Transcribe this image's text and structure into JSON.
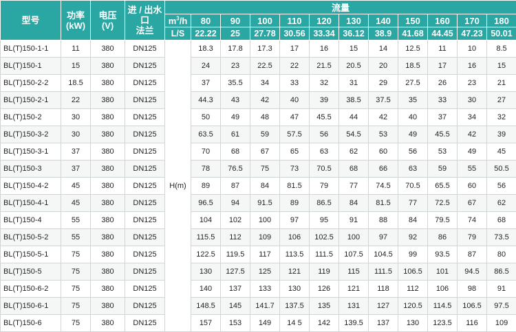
{
  "header": {
    "model": "型号",
    "power": "功率\n(kW)",
    "voltage": "电压\n(V)",
    "port": "进 / 出水\n口\n法兰",
    "flow": "流量",
    "unit_m3h": "m³/h",
    "unit_ls": "L/S",
    "head_label": "H(m)"
  },
  "flow_m3h": [
    "80",
    "90",
    "100",
    "110",
    "120",
    "130",
    "140",
    "150",
    "160",
    "170",
    "180"
  ],
  "flow_ls": [
    "22.22",
    "25",
    "27.78",
    "30.56",
    "33.34",
    "36.12",
    "38.9",
    "41.68",
    "44.45",
    "47.23",
    "50.01"
  ],
  "rows": [
    {
      "model": "BL(T)150-1-1",
      "power": "11",
      "voltage": "380",
      "port": "DN125",
      "heads": [
        "18.3",
        "17.8",
        "17.3",
        "17",
        "16",
        "15",
        "14",
        "12.5",
        "11",
        "10",
        "8.5"
      ]
    },
    {
      "model": "BL(T)150-1",
      "power": "15",
      "voltage": "380",
      "port": "DN125",
      "heads": [
        "24",
        "23",
        "22.5",
        "22",
        "21.5",
        "20.5",
        "20",
        "18.5",
        "17",
        "16",
        "15"
      ]
    },
    {
      "model": "BL(T)150-2-2",
      "power": "18.5",
      "voltage": "380",
      "port": "DN125",
      "heads": [
        "37",
        "35.5",
        "34",
        "33",
        "32",
        "31",
        "29",
        "27.5",
        "26",
        "23",
        "21"
      ]
    },
    {
      "model": "BL(T)150-2-1",
      "power": "22",
      "voltage": "380",
      "port": "DN125",
      "heads": [
        "44.3",
        "43",
        "42",
        "40",
        "39",
        "38.5",
        "37.5",
        "35",
        "33",
        "30",
        "27"
      ]
    },
    {
      "model": "BL(T)150-2",
      "power": "30",
      "voltage": "380",
      "port": "DN125",
      "heads": [
        "50",
        "49",
        "48",
        "47",
        "45.5",
        "44",
        "42",
        "40",
        "37",
        "34",
        "32"
      ]
    },
    {
      "model": "BL(T)150-3-2",
      "power": "30",
      "voltage": "380",
      "port": "DN125",
      "heads": [
        "63.5",
        "61",
        "59",
        "57.5",
        "56",
        "54.5",
        "53",
        "49",
        "45.5",
        "42",
        "39"
      ]
    },
    {
      "model": "BL(T)150-3-1",
      "power": "37",
      "voltage": "380",
      "port": "DN125",
      "heads": [
        "70",
        "68",
        "67",
        "65",
        "63",
        "62",
        "60",
        "56",
        "53",
        "49",
        "45"
      ]
    },
    {
      "model": "BL(T)150-3",
      "power": "37",
      "voltage": "380",
      "port": "DN125",
      "heads": [
        "78",
        "76.5",
        "75",
        "73",
        "70.5",
        "68",
        "66",
        "63",
        "59",
        "55",
        "50.5"
      ]
    },
    {
      "model": "BL(T)150-4-2",
      "power": "45",
      "voltage": "380",
      "port": "DN125",
      "heads": [
        "89",
        "87",
        "84",
        "81.5",
        "79",
        "77",
        "74.5",
        "70.5",
        "65.5",
        "60",
        "56"
      ]
    },
    {
      "model": "BL(T)150-4-1",
      "power": "45",
      "voltage": "380",
      "port": "DN125",
      "heads": [
        "96.5",
        "94",
        "91.5",
        "89",
        "86.5",
        "84",
        "81.5",
        "77",
        "72.5",
        "67",
        "62"
      ]
    },
    {
      "model": "BL(T)150-4",
      "power": "55",
      "voltage": "380",
      "port": "DN125",
      "heads": [
        "104",
        "102",
        "100",
        "97",
        "95",
        "91",
        "88",
        "84",
        "79.5",
        "74",
        "68"
      ]
    },
    {
      "model": "BL(T)150-5-2",
      "power": "55",
      "voltage": "380",
      "port": "DN125",
      "heads": [
        "115.5",
        "112",
        "109",
        "106",
        "102.5",
        "100",
        "97",
        "92",
        "86",
        "79",
        "73.5"
      ]
    },
    {
      "model": "BL(T)150-5-1",
      "power": "75",
      "voltage": "380",
      "port": "DN125",
      "heads": [
        "122.5",
        "119.5",
        "117",
        "113.5",
        "111.5",
        "107.5",
        "104.5",
        "99",
        "93.5",
        "87",
        "80"
      ]
    },
    {
      "model": "BL(T)150-5",
      "power": "75",
      "voltage": "380",
      "port": "DN125",
      "heads": [
        "130",
        "127.5",
        "125",
        "121",
        "119",
        "115",
        "111.5",
        "106.5",
        "101",
        "94.5",
        "86.5"
      ]
    },
    {
      "model": "BL(T)150-6-2",
      "power": "75",
      "voltage": "380",
      "port": "DN125",
      "heads": [
        "140",
        "137",
        "133",
        "130",
        "126",
        "121",
        "118",
        "112",
        "106",
        "98",
        "91"
      ]
    },
    {
      "model": "BL(T)150-6-1",
      "power": "75",
      "voltage": "380",
      "port": "DN125",
      "heads": [
        "148.5",
        "145",
        "141.7",
        "137.5",
        "135",
        "131",
        "127",
        "120.5",
        "114.5",
        "106.5",
        "97.5"
      ]
    },
    {
      "model": "BL(T)150-6",
      "power": "75",
      "voltage": "380",
      "port": "DN125",
      "heads": [
        "157",
        "153",
        "149",
        "14 5",
        "142",
        "139.5",
        "137",
        "130",
        "123.5",
        "116",
        "109"
      ]
    }
  ]
}
